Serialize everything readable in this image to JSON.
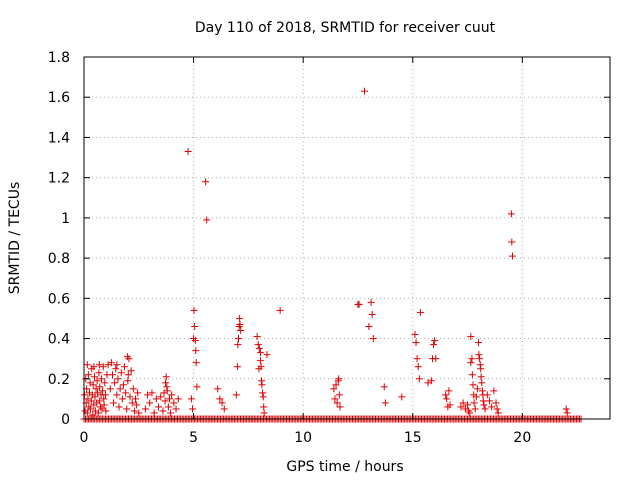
{
  "chart_data": {
    "type": "scatter",
    "title": "Day 110 of 2018, SRMTID for receiver cuut",
    "xlabel": "GPS time / hours",
    "ylabel": "SRMTID / TECUs",
    "xlim": [
      0,
      24
    ],
    "ylim": [
      0,
      1.8
    ],
    "xticks": [
      0,
      5,
      10,
      15,
      20
    ],
    "yticks": [
      0,
      0.2,
      0.4,
      0.6,
      0.8,
      1,
      1.2,
      1.4,
      1.6,
      1.8
    ],
    "ytick_labels": [
      "0",
      "0.2",
      "0.4",
      "0.6",
      "0.8",
      "1",
      "1.2",
      "1.4",
      "1.6",
      "1.8"
    ],
    "grid": true,
    "marker": "+",
    "color": "#e00000",
    "baseline": {
      "x_start": 0,
      "x_end": 22.7,
      "step": 0.07,
      "y": 0
    },
    "points": [
      [
        0.02,
        0.12
      ],
      [
        0.05,
        0.04
      ],
      [
        0.08,
        0.2
      ],
      [
        0.1,
        0.08
      ],
      [
        0.12,
        0.15
      ],
      [
        0.15,
        0.03
      ],
      [
        0.18,
        0.1
      ],
      [
        0.2,
        0.22
      ],
      [
        0.22,
        0.06
      ],
      [
        0.25,
        0.13
      ],
      [
        0.28,
        0.18
      ],
      [
        0.3,
        0.05
      ],
      [
        0.33,
        0.09
      ],
      [
        0.35,
        0.25
      ],
      [
        0.38,
        0.12
      ],
      [
        0.4,
        0.02
      ],
      [
        0.42,
        0.17
      ],
      [
        0.45,
        0.07
      ],
      [
        0.48,
        0.21
      ],
      [
        0.5,
        0.11
      ],
      [
        0.52,
        0.04
      ],
      [
        0.55,
        0.15
      ],
      [
        0.58,
        0.08
      ],
      [
        0.6,
        0.19
      ],
      [
        0.62,
        0.13
      ],
      [
        0.65,
        0.03
      ],
      [
        0.68,
        0.23
      ],
      [
        0.7,
        0.09
      ],
      [
        0.72,
        0.16
      ],
      [
        0.75,
        0.06
      ],
      [
        0.78,
        0.12
      ],
      [
        0.8,
        0.2
      ],
      [
        0.82,
        0.05
      ],
      [
        0.85,
        0.14
      ],
      [
        0.88,
        0.26
      ],
      [
        0.9,
        0.1
      ],
      [
        0.92,
        0.07
      ],
      [
        0.95,
        0.18
      ],
      [
        0.98,
        0.12
      ],
      [
        1.0,
        0.04
      ],
      [
        0.15,
        0.27
      ],
      [
        0.45,
        0.26
      ],
      [
        0.7,
        0.27
      ],
      [
        1.05,
        0.22
      ],
      [
        1.1,
        0.27
      ],
      [
        1.2,
        0.15
      ],
      [
        1.3,
        0.22
      ],
      [
        1.35,
        0.08
      ],
      [
        1.4,
        0.18
      ],
      [
        1.45,
        0.25
      ],
      [
        1.5,
        0.12
      ],
      [
        1.55,
        0.2
      ],
      [
        1.6,
        0.06
      ],
      [
        1.65,
        0.15
      ],
      [
        1.7,
        0.23
      ],
      [
        1.75,
        0.1
      ],
      [
        1.8,
        0.17
      ],
      [
        1.85,
        0.26
      ],
      [
        1.9,
        0.13
      ],
      [
        1.95,
        0.05
      ],
      [
        2.0,
        0.19
      ],
      [
        2.05,
        0.3
      ],
      [
        2.1,
        0.11
      ],
      [
        2.15,
        0.24
      ],
      [
        2.2,
        0.08
      ],
      [
        2.25,
        0.15
      ],
      [
        2.3,
        0.04
      ],
      [
        2.35,
        0.1
      ],
      [
        2.4,
        0.07
      ],
      [
        2.45,
        0.13
      ],
      [
        2.5,
        0.03
      ],
      [
        1.25,
        0.28
      ],
      [
        1.5,
        0.27
      ],
      [
        1.98,
        0.31
      ],
      [
        2.02,
        0.22
      ],
      [
        2.8,
        0.05
      ],
      [
        2.9,
        0.12
      ],
      [
        3.0,
        0.08
      ],
      [
        3.1,
        0.13
      ],
      [
        3.2,
        0.03
      ],
      [
        3.3,
        0.1
      ],
      [
        3.4,
        0.06
      ],
      [
        3.5,
        0.11
      ],
      [
        3.6,
        0.04
      ],
      [
        3.65,
        0.13
      ],
      [
        3.7,
        0.09
      ],
      [
        3.75,
        0.21
      ],
      [
        3.8,
        0.14
      ],
      [
        3.85,
        0.06
      ],
      [
        3.9,
        0.1
      ],
      [
        3.95,
        0.03
      ],
      [
        4.0,
        0.12
      ],
      [
        4.1,
        0.08
      ],
      [
        4.2,
        0.05
      ],
      [
        4.3,
        0.1
      ],
      [
        3.78,
        0.16
      ],
      [
        3.72,
        0.18
      ],
      [
        4.75,
        1.33
      ],
      [
        4.9,
        0.1
      ],
      [
        4.95,
        0.05
      ],
      [
        5.0,
        0.4
      ],
      [
        5.02,
        0.54
      ],
      [
        5.05,
        0.46
      ],
      [
        5.08,
        0.39
      ],
      [
        5.1,
        0.34
      ],
      [
        5.12,
        0.28
      ],
      [
        5.15,
        0.16
      ],
      [
        5.55,
        1.18
      ],
      [
        5.6,
        0.99
      ],
      [
        6.1,
        0.15
      ],
      [
        6.2,
        0.1
      ],
      [
        6.3,
        0.08
      ],
      [
        6.4,
        0.05
      ],
      [
        6.95,
        0.12
      ],
      [
        7.0,
        0.26
      ],
      [
        7.02,
        0.37
      ],
      [
        7.05,
        0.4
      ],
      [
        7.08,
        0.46
      ],
      [
        7.1,
        0.5
      ],
      [
        7.12,
        0.47
      ],
      [
        7.15,
        0.44
      ],
      [
        7.9,
        0.41
      ],
      [
        7.95,
        0.37
      ],
      [
        8.0,
        0.35
      ],
      [
        8.05,
        0.29
      ],
      [
        8.08,
        0.26
      ],
      [
        8.1,
        0.19
      ],
      [
        8.12,
        0.17
      ],
      [
        8.15,
        0.13
      ],
      [
        8.18,
        0.11
      ],
      [
        8.2,
        0.06
      ],
      [
        8.22,
        0.03
      ],
      [
        8.05,
        0.33
      ],
      [
        7.98,
        0.25
      ],
      [
        8.35,
        0.32
      ],
      [
        8.95,
        0.54
      ],
      [
        11.4,
        0.15
      ],
      [
        11.45,
        0.1
      ],
      [
        11.5,
        0.17
      ],
      [
        11.55,
        0.08
      ],
      [
        11.6,
        0.19
      ],
      [
        11.62,
        0.2
      ],
      [
        11.65,
        0.12
      ],
      [
        11.68,
        0.06
      ],
      [
        12.5,
        0.57
      ],
      [
        12.55,
        0.57
      ],
      [
        12.8,
        1.63
      ],
      [
        13.0,
        0.46
      ],
      [
        13.1,
        0.58
      ],
      [
        13.15,
        0.52
      ],
      [
        13.2,
        0.4
      ],
      [
        13.7,
        0.16
      ],
      [
        13.75,
        0.08
      ],
      [
        14.5,
        0.11
      ],
      [
        15.1,
        0.42
      ],
      [
        15.15,
        0.38
      ],
      [
        15.2,
        0.3
      ],
      [
        15.25,
        0.26
      ],
      [
        15.3,
        0.2
      ],
      [
        15.35,
        0.53
      ],
      [
        15.7,
        0.18
      ],
      [
        15.85,
        0.19
      ],
      [
        15.9,
        0.3
      ],
      [
        15.95,
        0.37
      ],
      [
        16.0,
        0.39
      ],
      [
        16.05,
        0.3
      ],
      [
        16.5,
        0.12
      ],
      [
        16.55,
        0.1
      ],
      [
        16.6,
        0.06
      ],
      [
        16.65,
        0.14
      ],
      [
        16.7,
        0.07
      ],
      [
        17.2,
        0.06
      ],
      [
        17.3,
        0.08
      ],
      [
        17.4,
        0.05
      ],
      [
        17.5,
        0.07
      ],
      [
        17.55,
        0.04
      ],
      [
        17.6,
        0.03
      ],
      [
        17.65,
        0.28
      ],
      [
        17.65,
        0.41
      ],
      [
        17.7,
        0.3
      ],
      [
        17.72,
        0.22
      ],
      [
        17.75,
        0.17
      ],
      [
        17.78,
        0.12
      ],
      [
        17.8,
        0.08
      ],
      [
        17.85,
        0.05
      ],
      [
        17.9,
        0.11
      ],
      [
        17.95,
        0.15
      ],
      [
        18.0,
        0.38
      ],
      [
        18.02,
        0.32
      ],
      [
        18.05,
        0.3
      ],
      [
        18.08,
        0.27
      ],
      [
        18.1,
        0.25
      ],
      [
        18.12,
        0.21
      ],
      [
        18.15,
        0.18
      ],
      [
        18.18,
        0.14
      ],
      [
        18.2,
        0.12
      ],
      [
        18.22,
        0.09
      ],
      [
        18.25,
        0.07
      ],
      [
        18.3,
        0.05
      ],
      [
        18.4,
        0.12
      ],
      [
        18.5,
        0.09
      ],
      [
        18.6,
        0.06
      ],
      [
        18.7,
        0.14
      ],
      [
        18.8,
        0.08
      ],
      [
        18.85,
        0.05
      ],
      [
        18.9,
        0.03
      ],
      [
        19.5,
        1.02
      ],
      [
        19.52,
        0.88
      ],
      [
        19.55,
        0.81
      ],
      [
        22.0,
        0.05
      ],
      [
        22.05,
        0.03
      ]
    ]
  }
}
